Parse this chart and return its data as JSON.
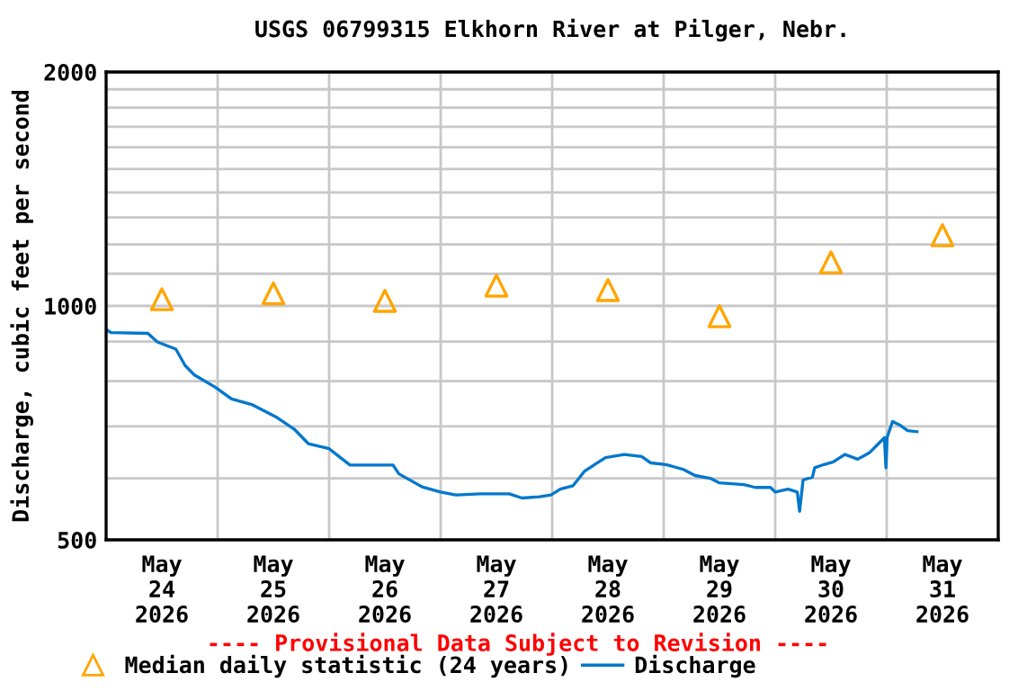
{
  "chart_data": {
    "type": "line",
    "title": "USGS 06799315 Elkhorn River at Pilger, Nebr.",
    "ylabel": "Discharge, cubic feet per second",
    "annotations": [
      "---- Provisional Data Subject to Revision ----"
    ],
    "log": "y",
    "grid": true,
    "legend": "bottom",
    "xlim": [
      "2026-05-24T00:00",
      "2026-06-01T00:00"
    ],
    "xticks": [
      {
        "value": "2026-05-24T12:00",
        "label": "May\n24\n2026"
      },
      {
        "value": "2026-05-25T12:00",
        "label": "May\n25\n2026"
      },
      {
        "value": "2026-05-26T12:00",
        "label": "May\n26\n2026"
      },
      {
        "value": "2026-05-27T12:00",
        "label": "May\n27\n2026"
      },
      {
        "value": "2026-05-28T12:00",
        "label": "May\n28\n2026"
      },
      {
        "value": "2026-05-29T12:00",
        "label": "May\n29\n2026"
      },
      {
        "value": "2026-05-30T12:00",
        "label": "May\n30\n2026"
      },
      {
        "value": "2026-05-31T12:00",
        "label": "May\n31\n2026"
      },
      {
        "value": "2026-05-25T00:00",
        "label": null
      },
      {
        "value": "2026-05-26T00:00",
        "label": null
      },
      {
        "value": "2026-05-27T00:00",
        "label": null
      },
      {
        "value": "2026-05-28T00:00",
        "label": null
      },
      {
        "value": "2026-05-29T00:00",
        "label": null
      },
      {
        "value": "2026-05-30T00:00",
        "label": null
      },
      {
        "value": "2026-05-31T00:00",
        "label": null
      }
    ],
    "ylim": [
      500,
      2000
    ],
    "yticks": [
      500,
      {
        "value": 600,
        "label": null
      },
      {
        "value": 700,
        "label": null
      },
      {
        "value": 800,
        "label": null
      },
      {
        "value": 900,
        "label": null
      },
      1000,
      {
        "value": 1100,
        "label": null
      },
      {
        "value": 1200,
        "label": null
      },
      {
        "value": 1300,
        "label": null
      },
      {
        "value": 1400,
        "label": null
      },
      {
        "value": 1500,
        "label": null
      },
      {
        "value": 1600,
        "label": null
      },
      {
        "value": 1700,
        "label": null
      },
      {
        "value": 1800,
        "label": null
      },
      {
        "value": 1900,
        "label": null
      },
      2000
    ],
    "series": [
      {
        "name": "Median daily statistic (24 years)",
        "type": "scatter",
        "marker": "triangle",
        "color": "#ffa500",
        "x": [
          "2026-05-24T12:00",
          "2026-05-25T12:00",
          "2026-05-26T12:00",
          "2026-05-27T12:00",
          "2026-05-28T12:00",
          "2026-05-29T12:00",
          "2026-05-30T12:00",
          "2026-05-31T12:00"
        ],
        "values": [
          1020,
          1038,
          1015,
          1062,
          1048,
          970,
          1138,
          1233
        ]
      },
      {
        "name": "Discharge",
        "color": "#0077cc",
        "x": [
          "2026-05-24T00:00",
          "2026-05-24T01:00",
          "2026-05-24T09:00",
          "2026-05-24T11:00",
          "2026-05-24T15:00",
          "2026-05-24T17:00",
          "2026-05-24T19:00",
          "2026-05-24T23:30",
          "2026-05-25T03:00",
          "2026-05-25T07:30",
          "2026-05-25T12:30",
          "2026-05-25T16:30",
          "2026-05-25T19:30",
          "2026-05-26T00:00",
          "2026-05-26T02:00",
          "2026-05-26T04:30",
          "2026-05-26T13:45",
          "2026-05-26T15:00",
          "2026-05-26T20:00",
          "2026-05-27T00:00",
          "2026-05-27T03:15",
          "2026-05-27T08:30",
          "2026-05-27T14:45",
          "2026-05-27T17:30",
          "2026-05-27T21:15",
          "2026-05-27T23:45",
          "2026-05-28T01:45",
          "2026-05-28T04:30",
          "2026-05-28T07:00",
          "2026-05-28T09:30",
          "2026-05-28T11:30",
          "2026-05-28T15:30",
          "2026-05-28T19:15",
          "2026-05-28T21:15",
          "2026-05-29T00:30",
          "2026-05-29T04:15",
          "2026-05-29T06:45",
          "2026-05-29T10:00",
          "2026-05-29T12:00",
          "2026-05-29T17:15",
          "2026-05-29T19:45",
          "2026-05-29T23:00",
          "2026-05-30T00:00",
          "2026-05-30T02:45",
          "2026-05-30T04:45",
          "2026-05-30T05:15",
          "2026-05-30T06:00",
          "2026-05-30T08:00",
          "2026-05-30T08:30",
          "2026-05-30T10:30",
          "2026-05-30T12:30",
          "2026-05-30T15:00",
          "2026-05-30T17:45",
          "2026-05-30T20:15",
          "2026-05-30T22:15",
          "2026-05-30T23:30",
          "2026-05-30T23:50",
          "2026-05-31T00:05",
          "2026-05-31T01:15",
          "2026-05-31T02:45",
          "2026-05-31T04:30",
          "2026-05-31T06:30"
        ],
        "values": [
          933,
          924,
          922,
          899,
          880,
          838,
          815,
          786,
          759,
          746,
          720,
          694,
          665,
          655,
          641,
          624,
          624,
          608,
          585,
          576,
          571,
          573,
          573,
          566,
          568,
          571,
          581,
          587,
          613,
          627,
          638,
          644,
          640,
          628,
          625,
          616,
          605,
          600,
          592,
          589,
          584,
          584,
          576,
          581,
          576,
          544,
          597,
          602,
          619,
          625,
          630,
          644,
          635,
          647,
          665,
          677,
          619,
          677,
          710,
          703,
          691,
          689
        ]
      }
    ]
  }
}
